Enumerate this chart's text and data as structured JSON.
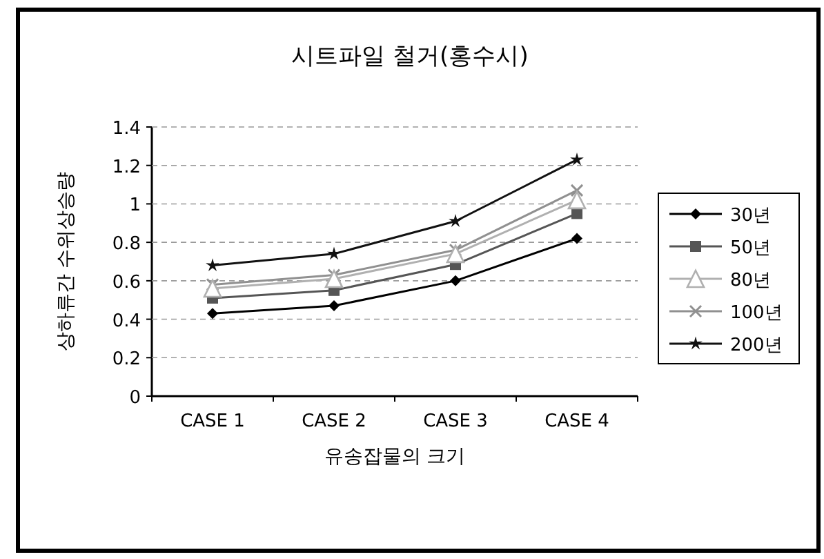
{
  "chart_data": {
    "type": "line",
    "title": "시트파일 철거(홍수시)",
    "xlabel": "유송잡물의 크기",
    "ylabel": "상하류간 수위상승량",
    "categories": [
      "CASE 1",
      "CASE 2",
      "CASE 3",
      "CASE 4"
    ],
    "series": [
      {
        "name": "30년",
        "color": "#000000",
        "marker": "diamond",
        "values": [
          0.43,
          0.47,
          0.6,
          0.82
        ]
      },
      {
        "name": "50년",
        "color": "#555555",
        "marker": "square",
        "values": [
          0.51,
          0.55,
          0.685,
          0.95
        ]
      },
      {
        "name": "80년",
        "color": "#b0b0b0",
        "marker": "triangle",
        "values": [
          0.56,
          0.61,
          0.74,
          1.02
        ]
      },
      {
        "name": "100년",
        "color": "#909090",
        "marker": "cross",
        "values": [
          0.58,
          0.63,
          0.76,
          1.07
        ]
      },
      {
        "name": "200년",
        "color": "#111111",
        "marker": "star",
        "values": [
          0.68,
          0.74,
          0.91,
          1.23
        ]
      }
    ],
    "ylim": [
      0,
      1.4
    ],
    "yticks": [
      0,
      0.2,
      0.4,
      0.6,
      0.8,
      1,
      1.2,
      1.4
    ],
    "grid": "y",
    "legend": "right"
  }
}
